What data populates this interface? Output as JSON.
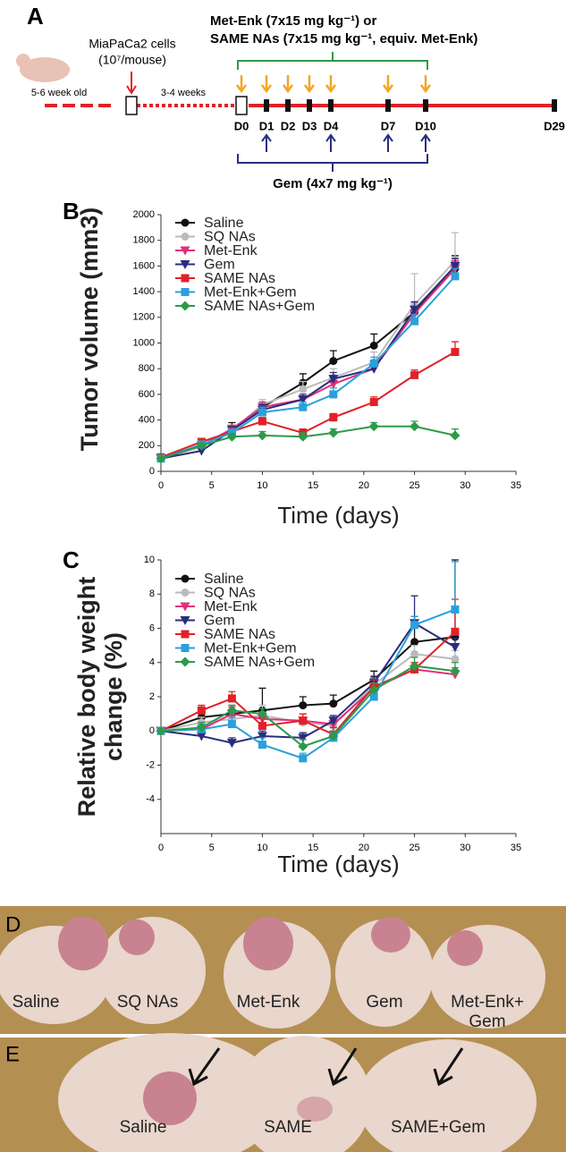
{
  "panel_a": {
    "label": "A",
    "cells": "MiaPaCa2 cells",
    "dose_cells": "(10⁷/mouse)",
    "age": "5-6 week old",
    "wait": "3-4 weeks",
    "treatment_line1": "Met-Enk (7x15 mg kg⁻¹) or",
    "treatment_line2": "SAME NAs (7x15 mg kg⁻¹, equiv. Met-Enk)",
    "days": [
      "D0",
      "D1",
      "D2",
      "D3",
      "D4",
      "D7",
      "D10",
      "D29"
    ],
    "gem": "Gem (4x7 mg kg⁻¹)"
  },
  "chart_data": [
    {
      "type": "line",
      "panel_label": "B",
      "xlabel": "Time (days)",
      "ylabel": "Tumor volume (mm3)",
      "x": [
        0,
        4,
        7,
        10,
        14,
        17,
        21,
        25,
        29
      ],
      "xlim": [
        0,
        35
      ],
      "xticks": [
        0,
        5,
        10,
        15,
        20,
        25,
        30,
        35
      ],
      "ylim": [
        0,
        2000
      ],
      "yticks": [
        0,
        200,
        400,
        600,
        800,
        1000,
        1200,
        1400,
        1600,
        1800,
        2000
      ],
      "series": [
        {
          "name": "Saline",
          "color": "#111111",
          "marker": "circle",
          "values": [
            110,
            200,
            330,
            500,
            690,
            860,
            980,
            1240,
            1580
          ],
          "errors": [
            10,
            20,
            50,
            40,
            70,
            80,
            90,
            60,
            100
          ]
        },
        {
          "name": "SQ NAs",
          "color": "#bbbbbb",
          "marker": "circle",
          "values": [
            100,
            190,
            320,
            520,
            640,
            730,
            850,
            1300,
            1640
          ],
          "errors": [
            10,
            20,
            40,
            40,
            60,
            70,
            80,
            240,
            220
          ]
        },
        {
          "name": "Met-Enk",
          "color": "#e0307a",
          "marker": "triangle",
          "values": [
            100,
            200,
            330,
            500,
            560,
            680,
            800,
            1230,
            1580
          ],
          "errors": [
            10,
            20,
            30,
            40,
            40,
            50,
            50,
            50,
            60
          ]
        },
        {
          "name": "Gem",
          "color": "#2a2d7c",
          "marker": "triangle",
          "values": [
            100,
            160,
            320,
            480,
            560,
            720,
            800,
            1260,
            1600
          ],
          "errors": [
            10,
            20,
            30,
            40,
            40,
            50,
            50,
            60,
            60
          ]
        },
        {
          "name": "SAME NAs",
          "color": "#e02127",
          "marker": "square",
          "values": [
            110,
            230,
            310,
            390,
            300,
            420,
            540,
            750,
            930
          ],
          "errors": [
            10,
            20,
            30,
            30,
            30,
            30,
            40,
            40,
            80
          ]
        },
        {
          "name": "Met-Enk+Gem",
          "color": "#2aa0dc",
          "marker": "square",
          "values": [
            100,
            210,
            300,
            460,
            500,
            600,
            840,
            1170,
            1520
          ],
          "errors": [
            10,
            20,
            30,
            40,
            40,
            50,
            50,
            50,
            60
          ]
        },
        {
          "name": "SAME NAs+Gem",
          "color": "#2d9a4a",
          "marker": "diamond",
          "values": [
            100,
            200,
            270,
            280,
            270,
            300,
            350,
            350,
            280
          ],
          "errors": [
            10,
            20,
            20,
            30,
            30,
            30,
            30,
            40,
            50
          ]
        }
      ]
    },
    {
      "type": "line",
      "panel_label": "C",
      "xlabel": "Time (days)",
      "ylabel": "Relative body weight change (%)",
      "x": [
        0,
        4,
        7,
        10,
        14,
        17,
        21,
        25,
        29
      ],
      "xlim": [
        0,
        35
      ],
      "xticks": [
        0,
        5,
        10,
        15,
        20,
        25,
        30,
        35
      ],
      "ylim": [
        -6,
        10
      ],
      "yticks": [
        -4,
        -2,
        0,
        2,
        4,
        6,
        8,
        10
      ],
      "series": [
        {
          "name": "Saline",
          "color": "#111111",
          "marker": "circle",
          "values": [
            0,
            0.8,
            1.0,
            1.2,
            1.5,
            1.6,
            3.0,
            5.2,
            5.5
          ],
          "errors": [
            0,
            0.3,
            0.5,
            1.3,
            0.5,
            0.5,
            0.5,
            1.5,
            4.5
          ]
        },
        {
          "name": "SQ NAs",
          "color": "#bbbbbb",
          "marker": "circle",
          "values": [
            0,
            0.5,
            0.7,
            0.9,
            0.5,
            0.3,
            2.7,
            4.5,
            4.2
          ],
          "errors": [
            0,
            0.3,
            0.4,
            0.6,
            0.5,
            0.4,
            0.4,
            0.5,
            0.5
          ]
        },
        {
          "name": "Met-Enk",
          "color": "#e0307a",
          "marker": "triangle",
          "values": [
            0,
            0.1,
            1.0,
            0.7,
            0.6,
            0.4,
            2.5,
            3.6,
            3.3
          ],
          "errors": [
            0,
            0.3,
            0.4,
            0.4,
            0.4,
            0.3,
            0.4,
            0.4,
            0.4
          ]
        },
        {
          "name": "Gem",
          "color": "#2a2d7c",
          "marker": "triangle",
          "values": [
            0,
            -0.3,
            -0.7,
            -0.3,
            -0.4,
            0.6,
            2.8,
            6.3,
            4.9
          ],
          "errors": [
            0,
            0.3,
            0.3,
            0.3,
            0.3,
            0.3,
            0.4,
            1.6,
            0.5
          ]
        },
        {
          "name": "SAME NAs",
          "color": "#e02127",
          "marker": "square",
          "values": [
            0,
            1.2,
            1.9,
            0.3,
            0.6,
            -0.2,
            2.6,
            3.6,
            5.8
          ],
          "errors": [
            0,
            0.3,
            0.4,
            0.5,
            0.4,
            0.4,
            0.4,
            0.4,
            1.9
          ]
        },
        {
          "name": "Met-Enk+Gem",
          "color": "#2aa0dc",
          "marker": "square",
          "values": [
            0,
            0.1,
            0.4,
            -0.8,
            -1.6,
            -0.4,
            2.0,
            6.2,
            7.1
          ],
          "errors": [
            0,
            0.3,
            0.4,
            0.4,
            0.3,
            0.3,
            0.4,
            0.5,
            2.8
          ]
        },
        {
          "name": "SAME NAs+Gem",
          "color": "#2d9a4a",
          "marker": "diamond",
          "values": [
            0,
            0.2,
            1.2,
            1.0,
            -0.9,
            -0.3,
            2.4,
            3.8,
            3.5
          ],
          "errors": [
            0,
            0.3,
            0.3,
            0.3,
            0.4,
            0.3,
            0.4,
            0.5,
            0.5
          ]
        }
      ]
    }
  ],
  "panel_d": {
    "label": "D",
    "labels": [
      "Saline",
      "SQ NAs",
      "Met-Enk",
      "Gem",
      "Met-Enk+ Gem"
    ]
  },
  "panel_e": {
    "label": "E",
    "labels": [
      "Saline",
      "SAME",
      "SAME+Gem"
    ]
  }
}
